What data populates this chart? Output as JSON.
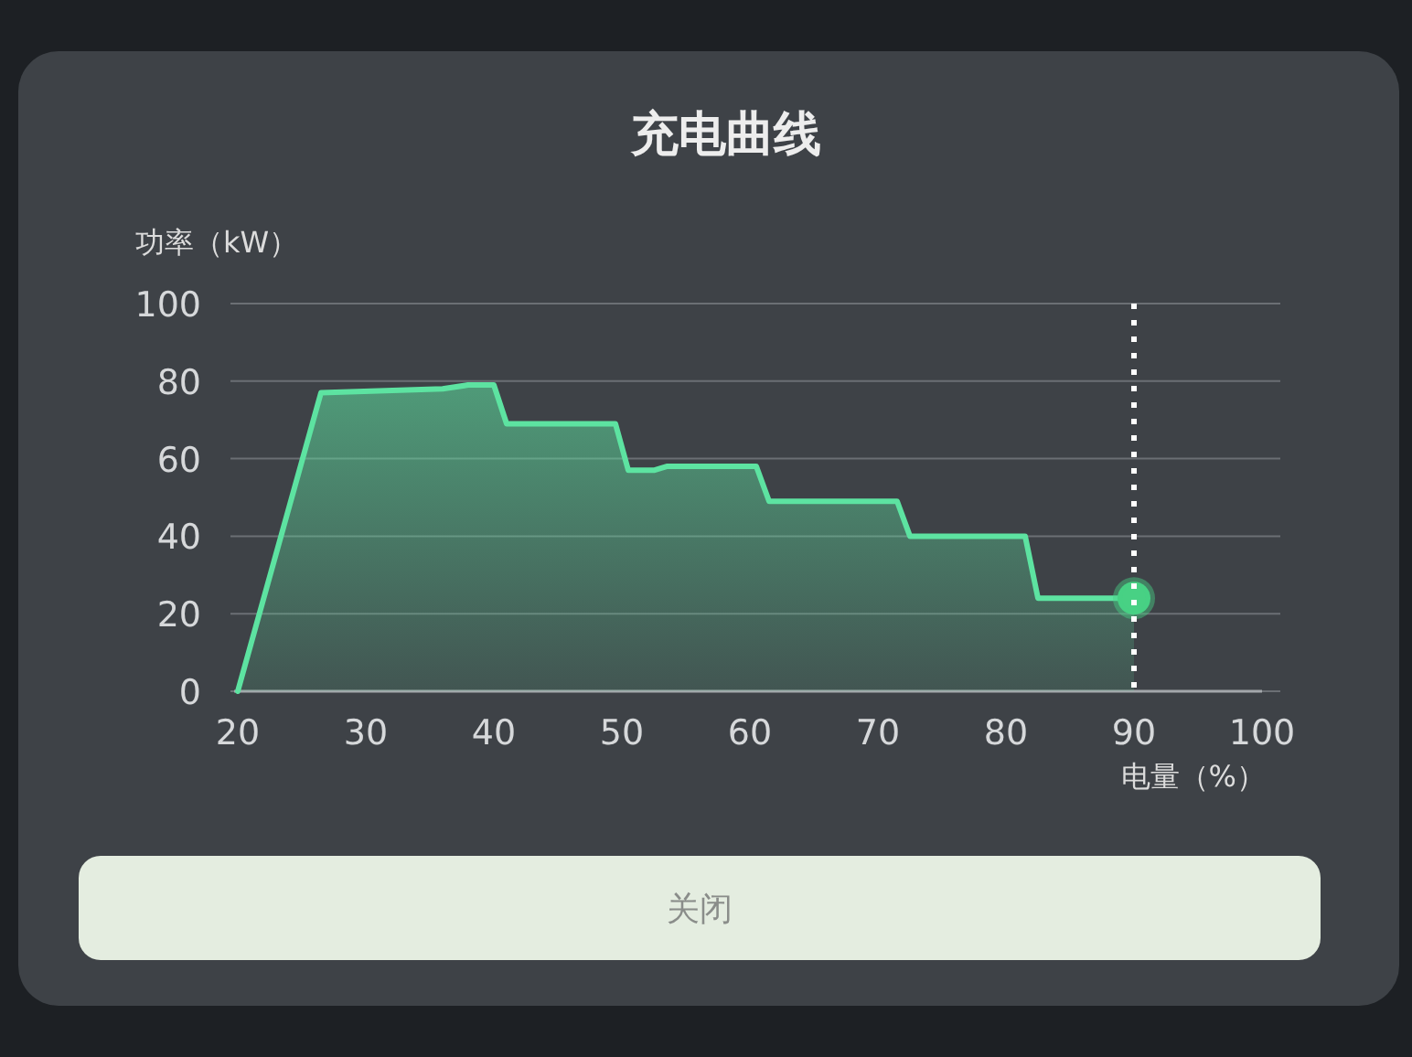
{
  "chart_data": {
    "type": "area",
    "title": "充电曲线",
    "xlabel": "电量（%）",
    "ylabel": "功率（kW）",
    "x": [
      20,
      26.5,
      36,
      38,
      40,
      41,
      49.5,
      50.5,
      52.5,
      53.5,
      60.5,
      61.5,
      71.5,
      72.5,
      81.5,
      82.5,
      90
    ],
    "series": [
      {
        "color": "#5de3a1",
        "values": [
          0,
          77,
          78,
          79,
          79,
          69,
          69,
          57,
          57,
          58,
          58,
          49,
          49,
          40,
          40,
          24,
          24
        ]
      },
      {
        "type": "scatter",
        "x": [
          90
        ],
        "values": [
          24
        ],
        "color": "#48d184"
      }
    ],
    "xlim": [
      20,
      100
    ],
    "xticks": [
      20,
      30,
      40,
      50,
      60,
      70,
      80,
      90,
      100
    ],
    "ylim": [
      0,
      100
    ],
    "yticks": [
      0,
      20,
      40,
      60,
      80,
      100
    ],
    "grid": "y",
    "ref_lines": [
      {
        "axis": "x",
        "value": 90,
        "color": "#ffffff",
        "line_style": "dotted"
      }
    ],
    "annotations": [
      "关闭"
    ]
  }
}
